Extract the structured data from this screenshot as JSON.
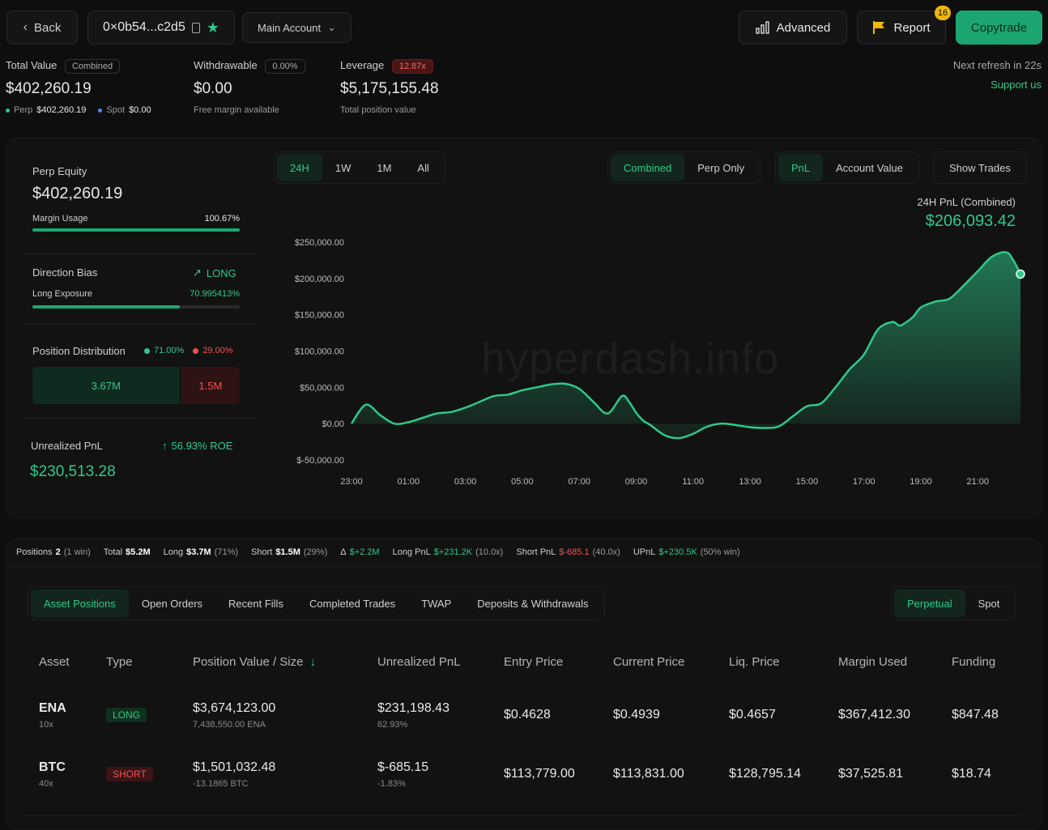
{
  "header": {
    "back_label": "Back",
    "address": "0×0b54...c2d5",
    "account_select": "Main Account",
    "advanced_label": "Advanced",
    "report_label": "Report",
    "report_badge": "16",
    "copytrade_label": "Copytrade"
  },
  "summary": {
    "total_value_label": "Total Value",
    "total_value_pill": "Combined",
    "total_value": "$402,260.19",
    "perp_label": "Perp",
    "perp_value": "$402,260.19",
    "spot_label": "Spot",
    "spot_value": "$0.00",
    "withdrawable_label": "Withdrawable",
    "withdrawable_pill": "0.00%",
    "withdrawable_value": "$0.00",
    "withdrawable_sub": "Free margin available",
    "leverage_label": "Leverage",
    "leverage_pill": "12.87x",
    "leverage_value": "$5,175,155.48",
    "leverage_sub": "Total position value",
    "refresh": "Next refresh in 22s",
    "support": "Support us"
  },
  "left_panel": {
    "perp_equity_label": "Perp Equity",
    "perp_equity": "$402,260.19",
    "margin_usage_label": "Margin Usage",
    "margin_usage": "100.67%",
    "margin_usage_fraction": 1.0,
    "direction_label": "Direction Bias",
    "direction_value": "LONG",
    "long_exposure_label": "Long Exposure",
    "long_exposure": "70.995413%",
    "long_exposure_fraction": 0.71,
    "position_dist_label": "Position Distribution",
    "dist_long_pct": "71.00%",
    "dist_short_pct": "29.00%",
    "dist_long_value": "3.67M",
    "dist_short_value": "1.5M",
    "dist_long_fraction": 0.71,
    "upnl_label": "Unrealized PnL",
    "upnl_roe": "56.93% ROE",
    "upnl_value": "$230,513.28"
  },
  "chart_controls": {
    "ranges": [
      "24H",
      "1W",
      "1M",
      "All"
    ],
    "range_active": 0,
    "modes": [
      "Combined",
      "Perp Only"
    ],
    "mode_active": 0,
    "metrics": [
      "PnL",
      "Account Value"
    ],
    "metric_active": 0,
    "show_trades": "Show Trades",
    "readout_label": "24H PnL (Combined)",
    "readout_value": "$206,093.42",
    "watermark": "hyperdash.info"
  },
  "chart_data": {
    "type": "area",
    "x": [
      "23:00",
      "23:30",
      "00:00",
      "00:30",
      "01:00",
      "01:30",
      "02:00",
      "02:30",
      "03:00",
      "03:30",
      "04:00",
      "04:30",
      "05:00",
      "05:30",
      "06:00",
      "06:30",
      "07:00",
      "07:30",
      "08:00",
      "08:30",
      "08:45",
      "09:00",
      "09:15",
      "09:30",
      "10:00",
      "10:30",
      "11:00",
      "11:30",
      "12:00",
      "12:30",
      "13:00",
      "13:30",
      "14:00",
      "14:30",
      "15:00",
      "15:30",
      "16:00",
      "16:30",
      "17:00",
      "17:30",
      "18:00",
      "18:15",
      "18:30",
      "18:45",
      "19:00",
      "19:30",
      "20:00",
      "20:30",
      "21:00",
      "21:30",
      "22:00",
      "22:15",
      "22:30"
    ],
    "values": [
      0,
      26000,
      12000,
      0,
      2000,
      8000,
      14000,
      16000,
      22000,
      30000,
      38000,
      40000,
      46000,
      50000,
      54000,
      55000,
      48000,
      30000,
      14000,
      38000,
      30000,
      15000,
      4000,
      -2000,
      -16000,
      -20000,
      -14000,
      -4000,
      0,
      -2000,
      -5000,
      -6000,
      -4000,
      10000,
      24000,
      28000,
      50000,
      75000,
      95000,
      130000,
      140000,
      135000,
      140000,
      148000,
      160000,
      168000,
      172000,
      190000,
      210000,
      230000,
      236000,
      225000,
      206000
    ],
    "yticks": [
      "$250,000.00",
      "$200,000.00",
      "$150,000.00",
      "$100,000.00",
      "$50,000.00",
      "$0.00",
      "$-50,000.00"
    ],
    "ytick_values": [
      250000,
      200000,
      150000,
      100000,
      50000,
      0,
      -50000
    ],
    "xticks": [
      "23:00",
      "01:00",
      "03:00",
      "05:00",
      "07:00",
      "09:00",
      "11:00",
      "13:00",
      "15:00",
      "17:00",
      "19:00",
      "21:00"
    ],
    "ylim": [
      -50000,
      250000
    ],
    "grid": false,
    "line_color": "#2ec98a"
  },
  "stats_bar": {
    "positions_label": "Positions",
    "positions_value": "2",
    "positions_sub": "(1 win)",
    "total_label": "Total",
    "total_value": "$5.2M",
    "long_label": "Long",
    "long_value": "$3.7M",
    "long_sub": "(71%)",
    "short_label": "Short",
    "short_value": "$1.5M",
    "short_sub": "(29%)",
    "delta_label": "Δ",
    "delta_value": "$+2.2M",
    "longpnl_label": "Long PnL",
    "longpnl_value": "$+231.2K",
    "longpnl_sub": "(10.0x)",
    "shortpnl_label": "Short PnL",
    "shortpnl_value": "$-685.1",
    "shortpnl_sub": "(40.0x)",
    "upnl_label": "UPnL",
    "upnl_value": "$+230.5K",
    "upnl_sub": "(50% win)"
  },
  "tabs": {
    "items": [
      "Asset Positions",
      "Open Orders",
      "Recent Fills",
      "Completed Trades",
      "TWAP",
      "Deposits & Withdrawals"
    ],
    "active": 0,
    "market": [
      "Perpetual",
      "Spot"
    ],
    "market_active": 0
  },
  "table": {
    "headers": [
      "Asset",
      "Type",
      "Position Value / Size",
      "Unrealized PnL",
      "Entry Price",
      "Current Price",
      "Liq. Price",
      "Margin Used",
      "Funding"
    ],
    "rows": [
      {
        "asset": "ENA",
        "lev": "10x",
        "type": "LONG",
        "value": "$3,674,123.00",
        "size": "7,438,550.00 ENA",
        "upnl": "$231,198.43",
        "upnl_pct": "62.93%",
        "entry": "$0.4628",
        "current": "$0.4939",
        "liq": "$0.4657",
        "margin": "$367,412.30",
        "funding": "$847.48"
      },
      {
        "asset": "BTC",
        "lev": "40x",
        "type": "SHORT",
        "value": "$1,501,032.48",
        "size": "-13.1865 BTC",
        "upnl": "$-685.15",
        "upnl_pct": "-1.83%",
        "entry": "$113,779.00",
        "current": "$113,831.00",
        "liq": "$128,795.14",
        "margin": "$37,525.81",
        "funding": "$18.74"
      }
    ]
  }
}
